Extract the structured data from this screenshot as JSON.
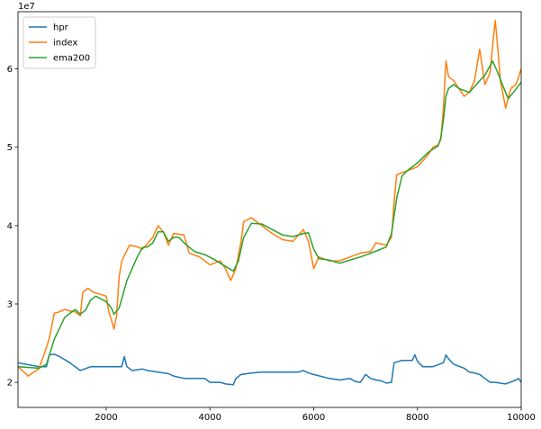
{
  "chart_data": {
    "type": "line",
    "offset_label": "1e7",
    "xlim": [
      300,
      10000
    ],
    "ylim": [
      16800000,
      67300000
    ],
    "x_ticks": [
      2000,
      4000,
      6000,
      8000,
      10000
    ],
    "x_tick_labels": [
      "2000",
      "4000",
      "6000",
      "8000",
      "10000"
    ],
    "y_ticks": [
      20000000,
      30000000,
      40000000,
      50000000,
      60000000
    ],
    "y_tick_labels": [
      "2",
      "3",
      "4",
      "5",
      "6"
    ],
    "legend_position": "top-left",
    "grid": false,
    "series": [
      {
        "name": "hpr",
        "color": "#1f77b4",
        "x": [
          300,
          700,
          850,
          900,
          1000,
          1100,
          1300,
          1400,
          1500,
          1700,
          1900,
          2100,
          2300,
          2350,
          2400,
          2500,
          2700,
          2800,
          3000,
          3200,
          3300,
          3500,
          3600,
          3900,
          4000,
          4200,
          4300,
          4450,
          4500,
          4600,
          4800,
          5000,
          5500,
          5700,
          5800,
          5900,
          6000,
          6300,
          6500,
          6700,
          6800,
          6900,
          7000,
          7100,
          7200,
          7300,
          7400,
          7500,
          7550,
          7700,
          7900,
          7950,
          8000,
          8100,
          8300,
          8500,
          8550,
          8600,
          8700,
          8900,
          9000,
          9100,
          9200,
          9300,
          9400,
          9500,
          9700,
          9900,
          9950,
          10000
        ],
        "values": [
          22500000,
          22000000,
          22000000,
          23500000,
          23600000,
          23300000,
          22500000,
          22000000,
          21500000,
          22000000,
          22000000,
          22000000,
          22000000,
          23300000,
          22000000,
          21500000,
          21700000,
          21500000,
          21300000,
          21100000,
          20800000,
          20500000,
          20500000,
          20500000,
          20000000,
          20000000,
          19800000,
          19700000,
          20500000,
          21000000,
          21200000,
          21300000,
          21300000,
          21300000,
          21500000,
          21200000,
          21000000,
          20500000,
          20300000,
          20500000,
          20100000,
          20000000,
          21000000,
          20500000,
          20300000,
          20200000,
          19900000,
          20000000,
          22500000,
          22800000,
          22800000,
          23500000,
          22700000,
          22000000,
          22000000,
          22500000,
          23500000,
          23000000,
          22300000,
          21800000,
          21300000,
          21200000,
          21000000,
          20500000,
          20000000,
          20000000,
          19800000,
          20300000,
          20500000,
          20000000
        ]
      },
      {
        "name": "index",
        "color": "#ff7f0e",
        "x": [
          300,
          500,
          600,
          700,
          800,
          900,
          1000,
          1100,
          1200,
          1300,
          1400,
          1500,
          1550,
          1650,
          1750,
          1850,
          2000,
          2050,
          2100,
          2150,
          2200,
          2250,
          2300,
          2450,
          2600,
          2700,
          2900,
          3000,
          3100,
          3200,
          3300,
          3500,
          3600,
          3800,
          4000,
          4200,
          4300,
          4400,
          4500,
          4600,
          4650,
          4800,
          5000,
          5100,
          5200,
          5400,
          5600,
          5800,
          5900,
          6000,
          6100,
          6300,
          6500,
          6700,
          6900,
          7100,
          7200,
          7400,
          7500,
          7550,
          7600,
          7800,
          8000,
          8200,
          8300,
          8400,
          8450,
          8500,
          8550,
          8600,
          8700,
          8800,
          8900,
          9000,
          9100,
          9200,
          9300,
          9400,
          9450,
          9500,
          9550,
          9600,
          9700,
          9800,
          9900,
          10000
        ],
        "values": [
          22000000,
          20800000,
          21300000,
          21700000,
          23500000,
          25500000,
          28800000,
          29000000,
          29300000,
          29100000,
          29000000,
          28500000,
          31500000,
          32000000,
          31500000,
          31300000,
          31000000,
          29000000,
          28000000,
          26800000,
          28500000,
          33500000,
          35500000,
          37500000,
          37300000,
          37000000,
          38500000,
          40000000,
          39200000,
          37500000,
          39000000,
          38800000,
          36500000,
          36000000,
          35000000,
          35500000,
          34500000,
          33000000,
          34500000,
          38000000,
          40500000,
          41000000,
          40000000,
          39500000,
          39000000,
          38200000,
          38000000,
          39500000,
          38000000,
          34500000,
          36000000,
          35500000,
          35500000,
          36000000,
          36500000,
          36700000,
          37800000,
          37500000,
          38500000,
          43000000,
          46500000,
          47000000,
          47500000,
          49000000,
          50000000,
          50300000,
          51000000,
          55000000,
          61000000,
          59000000,
          58500000,
          57500000,
          56500000,
          57000000,
          58500000,
          62500000,
          58000000,
          59500000,
          63000000,
          66200000,
          62500000,
          58500000,
          55000000,
          57500000,
          58000000,
          60000000
        ]
      },
      {
        "name": "ema200",
        "color": "#2ca02c",
        "x": [
          300,
          700,
          850,
          1000,
          1200,
          1400,
          1500,
          1600,
          1700,
          1800,
          2000,
          2100,
          2150,
          2250,
          2400,
          2600,
          2700,
          2800,
          2900,
          3000,
          3100,
          3200,
          3300,
          3400,
          3500,
          3700,
          3900,
          4100,
          4300,
          4450,
          4550,
          4650,
          4800,
          5000,
          5200,
          5400,
          5600,
          5800,
          5900,
          6000,
          6100,
          6300,
          6500,
          6700,
          6900,
          7100,
          7300,
          7400,
          7500,
          7600,
          7700,
          7800,
          8000,
          8200,
          8400,
          8450,
          8500,
          8550,
          8600,
          8700,
          8800,
          9000,
          9200,
          9300,
          9450,
          9550,
          9650,
          9750,
          9850,
          10000
        ],
        "values": [
          22000000,
          21800000,
          22300000,
          25500000,
          28300000,
          29300000,
          28700000,
          29200000,
          30500000,
          31000000,
          30300000,
          29500000,
          28700000,
          29500000,
          33000000,
          36000000,
          37200000,
          37300000,
          37800000,
          39200000,
          39200000,
          38000000,
          38500000,
          38500000,
          37800000,
          36700000,
          36300000,
          35600000,
          34800000,
          34200000,
          35500000,
          38500000,
          40300000,
          40200000,
          39500000,
          38800000,
          38600000,
          39000000,
          39100000,
          37000000,
          35800000,
          35600000,
          35200000,
          35600000,
          36000000,
          36500000,
          37000000,
          37300000,
          39000000,
          43500000,
          46300000,
          47000000,
          48000000,
          49300000,
          50200000,
          51200000,
          53500000,
          56500000,
          57500000,
          58000000,
          57500000,
          57000000,
          58500000,
          59200000,
          61000000,
          59500000,
          57800000,
          56200000,
          57000000,
          58300000
        ]
      }
    ]
  }
}
